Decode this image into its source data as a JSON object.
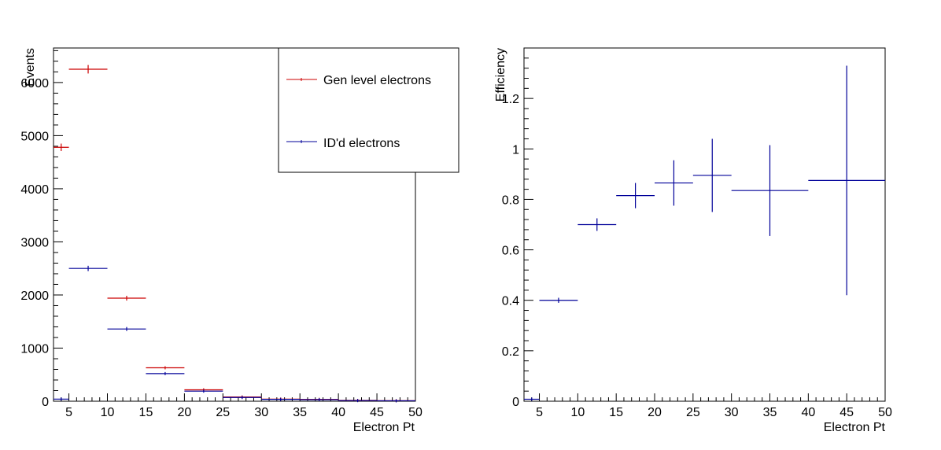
{
  "chart_data": [
    {
      "type": "histogram",
      "xlabel": "Electron Pt",
      "ylabel": "Events",
      "xlim": [
        3,
        50
      ],
      "ylim": [
        0,
        6650
      ],
      "xticks": [
        5,
        10,
        15,
        20,
        25,
        30,
        35,
        40,
        45,
        50
      ],
      "yticks": [
        0,
        1000,
        2000,
        3000,
        4000,
        5000,
        6000
      ],
      "legend": {
        "position": "top-right",
        "entries": [
          "Gen level electrons",
          "ID'd electrons"
        ]
      },
      "series": [
        {
          "name": "Gen level electrons",
          "color": "#cc0000",
          "bins": [
            {
              "lo": 3,
              "hi": 5,
              "y": 4780,
              "err": 70
            },
            {
              "lo": 5,
              "hi": 10,
              "y": 6250,
              "err": 80
            },
            {
              "lo": 10,
              "hi": 15,
              "y": 1940,
              "err": 45
            },
            {
              "lo": 15,
              "hi": 20,
              "y": 630,
              "err": 25
            },
            {
              "lo": 20,
              "hi": 25,
              "y": 215,
              "err": 15
            },
            {
              "lo": 25,
              "hi": 30,
              "y": 80,
              "err": 9
            },
            {
              "lo": 30,
              "hi": 35,
              "y": 40,
              "err": 6
            },
            {
              "lo": 35,
              "hi": 40,
              "y": 35,
              "err": 6
            },
            {
              "lo": 40,
              "hi": 45,
              "y": 15,
              "err": 4
            },
            {
              "lo": 45,
              "hi": 50,
              "y": 10,
              "err": 3
            }
          ]
        },
        {
          "name": "ID'd electrons",
          "color": "#000099",
          "bins": [
            {
              "lo": 3,
              "hi": 5,
              "y": 40,
              "err": 6
            },
            {
              "lo": 5,
              "hi": 10,
              "y": 2500,
              "err": 50
            },
            {
              "lo": 10,
              "hi": 15,
              "y": 1360,
              "err": 37
            },
            {
              "lo": 15,
              "hi": 20,
              "y": 520,
              "err": 23
            },
            {
              "lo": 20,
              "hi": 25,
              "y": 190,
              "err": 14
            },
            {
              "lo": 25,
              "hi": 30,
              "y": 70,
              "err": 8
            },
            {
              "lo": 30,
              "hi": 35,
              "y": 35,
              "err": 6
            },
            {
              "lo": 35,
              "hi": 40,
              "y": 30,
              "err": 5
            },
            {
              "lo": 40,
              "hi": 45,
              "y": 12,
              "err": 3
            },
            {
              "lo": 45,
              "hi": 50,
              "y": 8,
              "err": 3
            }
          ]
        }
      ]
    },
    {
      "type": "histogram",
      "xlabel": "Electron Pt",
      "ylabel": "Efficiency",
      "xlim": [
        3,
        50
      ],
      "ylim": [
        0,
        1.4
      ],
      "xticks": [
        5,
        10,
        15,
        20,
        25,
        30,
        35,
        40,
        45,
        50
      ],
      "yticks": [
        "0",
        "0.2",
        "0.4",
        "0.6",
        "0.8",
        "1",
        "1.2"
      ],
      "series": [
        {
          "color": "#000099",
          "bins": [
            {
              "lo": 3,
              "hi": 5,
              "y": 0.008,
              "err": 0.003
            },
            {
              "lo": 5,
              "hi": 10,
              "y": 0.4,
              "err": 0.01
            },
            {
              "lo": 10,
              "hi": 15,
              "y": 0.7,
              "err": 0.025
            },
            {
              "lo": 15,
              "hi": 20,
              "y": 0.815,
              "err": 0.05
            },
            {
              "lo": 20,
              "hi": 25,
              "y": 0.865,
              "err": 0.09
            },
            {
              "lo": 25,
              "hi": 30,
              "y": 0.895,
              "err": 0.145
            },
            {
              "lo": 30,
              "hi": 40,
              "y": 0.835,
              "err": 0.18
            },
            {
              "lo": 40,
              "hi": 50,
              "y": 0.875,
              "err": 0.455
            }
          ]
        }
      ]
    }
  ]
}
